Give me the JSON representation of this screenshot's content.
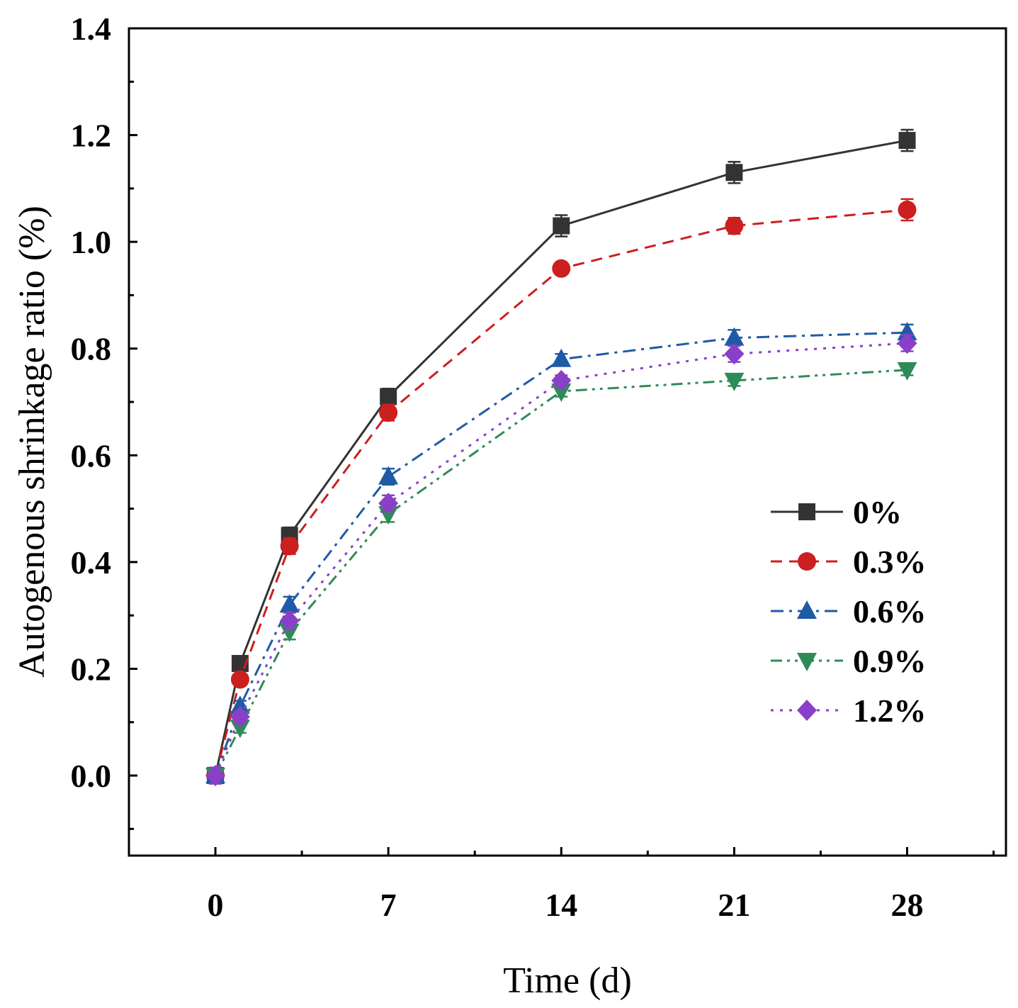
{
  "chart_data": {
    "type": "line",
    "title": "",
    "xlabel": "Time (d)",
    "ylabel": "Autogenous shrinkage ratio (%)",
    "xlim": [
      -3.5,
      32
    ],
    "ylim": [
      -0.15,
      1.4
    ],
    "xticks": [
      0,
      7,
      14,
      21,
      28
    ],
    "xtick_labels": [
      "0",
      "7",
      "14",
      "21",
      "28"
    ],
    "yticks": [
      0.0,
      0.2,
      0.4,
      0.6,
      0.8,
      1.0,
      1.2,
      1.4
    ],
    "ytick_labels": [
      "0.0",
      "0.2",
      "0.4",
      "0.6",
      "0.8",
      "1.0",
      "1.2",
      "1.4"
    ],
    "grid": false,
    "legend_position": "right-middle",
    "x": [
      0,
      1,
      3,
      7,
      14,
      21,
      28
    ],
    "series": [
      {
        "name": "0%",
        "color": "#333333",
        "marker": "square",
        "dash": "solid",
        "values": [
          0.0,
          0.21,
          0.45,
          0.71,
          1.03,
          1.13,
          1.19
        ],
        "error": [
          0.015,
          0.01,
          0.015,
          0.015,
          0.02,
          0.02,
          0.02
        ]
      },
      {
        "name": "0.3%",
        "color": "#cc1f1f",
        "marker": "circle",
        "dash": "dash",
        "values": [
          0.0,
          0.18,
          0.43,
          0.68,
          0.95,
          1.03,
          1.06
        ],
        "error": [
          0.015,
          0.01,
          0.015,
          0.015,
          0.01,
          0.015,
          0.02
        ]
      },
      {
        "name": "0.6%",
        "color": "#1f5aa6",
        "marker": "triangle-up",
        "dash": "dashdot",
        "values": [
          0.0,
          0.13,
          0.32,
          0.56,
          0.78,
          0.82,
          0.83
        ],
        "error": [
          0.015,
          0.01,
          0.015,
          0.015,
          0.01,
          0.015,
          0.015
        ]
      },
      {
        "name": "0.9%",
        "color": "#2e8b57",
        "marker": "triangle-down",
        "dash": "dashdotdot",
        "values": [
          0.0,
          0.09,
          0.27,
          0.49,
          0.72,
          0.74,
          0.76
        ],
        "error": [
          0.015,
          0.01,
          0.015,
          0.015,
          0.01,
          0.01,
          0.01
        ]
      },
      {
        "name": "1.2%",
        "color": "#8a3fc9",
        "marker": "diamond",
        "dash": "dot",
        "values": [
          0.0,
          0.11,
          0.29,
          0.51,
          0.74,
          0.79,
          0.81
        ],
        "error": [
          0.015,
          0.01,
          0.015,
          0.015,
          0.01,
          0.015,
          0.015
        ]
      }
    ]
  }
}
